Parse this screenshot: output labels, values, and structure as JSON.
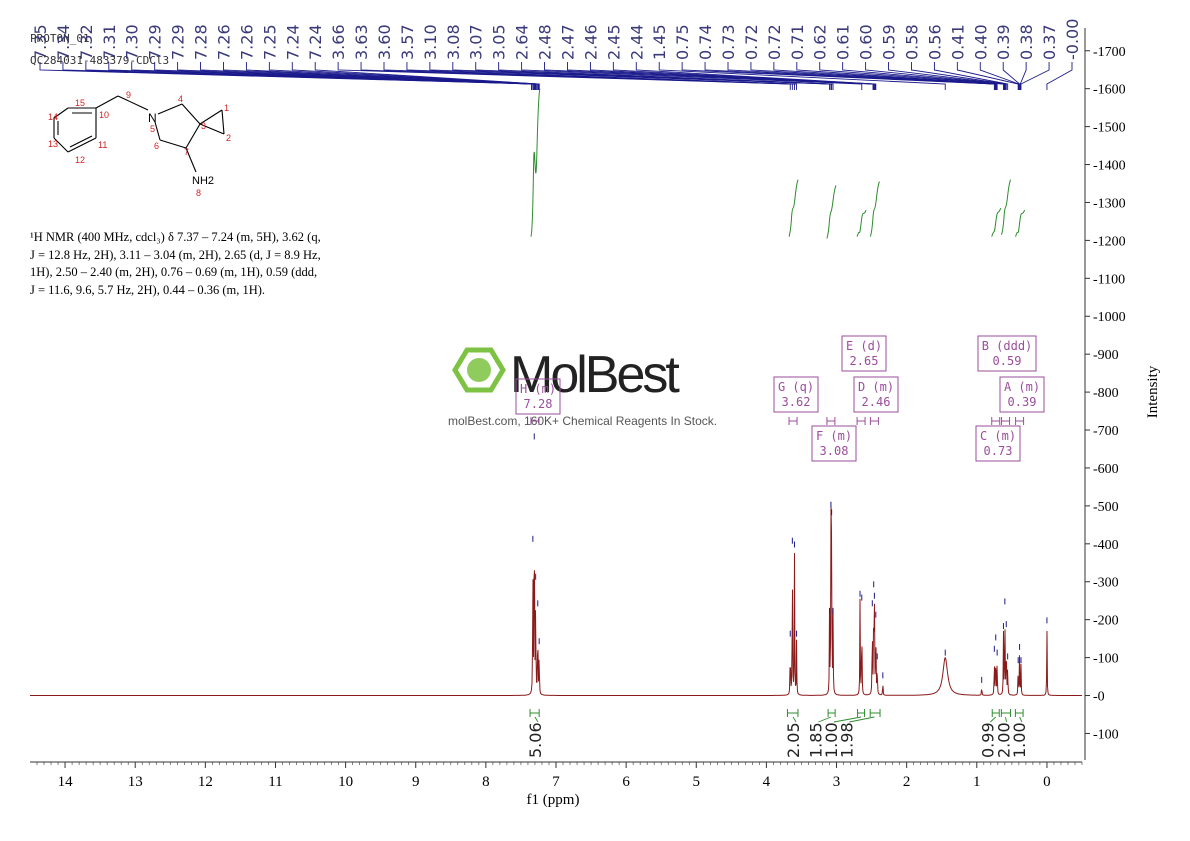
{
  "header": {
    "line1": "PROTON_01",
    "line2": "QC284031-483379-CDCl3"
  },
  "watermark": {
    "brand": "MolBest",
    "tagline": "molBest.com, 160K+ Chemical Reagents In Stock."
  },
  "structure": {
    "atom_labels": [
      "15",
      "14",
      "13",
      "12",
      "11",
      "10",
      "9",
      "N",
      "5",
      "4",
      "3",
      "1",
      "2",
      "6",
      "7",
      "NH2",
      "8"
    ]
  },
  "description": {
    "lines": [
      "¹H NMR (400 MHz, cdcl₃) δ 7.37 – 7.24 (m, 5H), 3.62 (q,",
      "J = 12.8 Hz, 2H), 3.11 – 3.04 (m, 2H), 2.65 (d, J = 8.9 Hz,",
      "1H), 2.50 – 2.40 (m, 2H), 0.76 – 0.69 (m, 1H), 0.59 (ddd,",
      "J = 11.6, 9.6, 5.7 Hz, 2H), 0.44 – 0.36 (m, 1H)."
    ]
  },
  "chart_data": {
    "type": "line",
    "xlabel": "f1 (ppm)",
    "ylabel": "Intensity",
    "xlim": [
      14.5,
      -0.5
    ],
    "ylim": [
      -170,
      1760
    ],
    "x_ticks": [
      14,
      13,
      12,
      11,
      10,
      9,
      8,
      7,
      6,
      5,
      4,
      3,
      2,
      1,
      0
    ],
    "y_ticks": [
      -100,
      0,
      100,
      200,
      300,
      400,
      500,
      600,
      700,
      800,
      900,
      1000,
      1100,
      1200,
      1300,
      1400,
      1500,
      1600,
      1700
    ],
    "peak_labels": [
      "7.35",
      "7.34",
      "7.32",
      "7.31",
      "7.30",
      "7.29",
      "7.29",
      "7.28",
      "7.26",
      "7.26",
      "7.25",
      "7.24",
      "7.24",
      "3.66",
      "3.63",
      "3.60",
      "3.57",
      "3.10",
      "3.08",
      "3.07",
      "3.05",
      "2.64",
      "2.48",
      "2.47",
      "2.46",
      "2.45",
      "2.44",
      "1.45",
      "0.75",
      "0.74",
      "0.73",
      "0.72",
      "0.72",
      "0.71",
      "0.62",
      "0.61",
      "0.60",
      "0.59",
      "0.58",
      "0.56",
      "0.41",
      "0.40",
      "0.39",
      "0.38",
      "0.37",
      "-0.00"
    ],
    "peaks": [
      {
        "x": 7.33,
        "h": 400
      },
      {
        "x": 7.31,
        "h": 670
      },
      {
        "x": 7.29,
        "h": 300
      },
      {
        "x": 7.26,
        "h": 230
      },
      {
        "x": 7.24,
        "h": 130
      },
      {
        "x": 3.66,
        "h": 150
      },
      {
        "x": 3.63,
        "h": 395
      },
      {
        "x": 3.6,
        "h": 385
      },
      {
        "x": 3.57,
        "h": 150
      },
      {
        "x": 3.1,
        "h": 210
      },
      {
        "x": 3.08,
        "h": 490
      },
      {
        "x": 3.07,
        "h": 470
      },
      {
        "x": 3.05,
        "h": 210
      },
      {
        "x": 2.665,
        "h": 255
      },
      {
        "x": 2.64,
        "h": 245
      },
      {
        "x": 2.49,
        "h": 230
      },
      {
        "x": 2.47,
        "h": 280
      },
      {
        "x": 2.46,
        "h": 250
      },
      {
        "x": 2.44,
        "h": 200
      },
      {
        "x": 2.42,
        "h": 90
      },
      {
        "x": 2.34,
        "h": 40
      },
      {
        "x": 1.45,
        "h": 100
      },
      {
        "x": 0.93,
        "h": 28
      },
      {
        "x": 0.75,
        "h": 110
      },
      {
        "x": 0.73,
        "h": 140
      },
      {
        "x": 0.71,
        "h": 100
      },
      {
        "x": 0.62,
        "h": 170
      },
      {
        "x": 0.6,
        "h": 235
      },
      {
        "x": 0.58,
        "h": 175
      },
      {
        "x": 0.56,
        "h": 90
      },
      {
        "x": 0.41,
        "h": 80
      },
      {
        "x": 0.39,
        "h": 115
      },
      {
        "x": 0.37,
        "h": 80
      },
      {
        "x": 0.0,
        "h": 185
      }
    ],
    "multiplets": [
      {
        "id": "H",
        "type": "(m)",
        "shift": "7.28",
        "x": 7.3
      },
      {
        "id": "G",
        "type": "(q)",
        "shift": "3.62",
        "x": 3.62
      },
      {
        "id": "F",
        "type": "(m)",
        "shift": "3.08",
        "x": 3.08
      },
      {
        "id": "E",
        "type": "(d)",
        "shift": "2.65",
        "x": 2.65
      },
      {
        "id": "D",
        "type": "(m)",
        "shift": "2.46",
        "x": 2.46
      },
      {
        "id": "C",
        "type": "(m)",
        "shift": "0.73",
        "x": 0.73
      },
      {
        "id": "B",
        "type": "(ddd)",
        "shift": "0.59",
        "x": 0.59
      },
      {
        "id": "A",
        "type": "(m)",
        "shift": "0.39",
        "x": 0.39
      }
    ],
    "integrals": [
      {
        "label": "5.06",
        "from": 7.37,
        "to": 7.24
      },
      {
        "label": "2.05",
        "from": 3.7,
        "to": 3.55
      },
      {
        "label": "1.85",
        "from": 3.12,
        "to": 3.02
      },
      {
        "label": "1.00",
        "from": 2.7,
        "to": 2.6
      },
      {
        "label": "1.98",
        "from": 2.52,
        "to": 2.38
      },
      {
        "label": "0.99",
        "from": 0.78,
        "to": 0.68
      },
      {
        "label": "2.00",
        "from": 0.65,
        "to": 0.52
      },
      {
        "label": "1.00",
        "from": 0.45,
        "to": 0.34
      }
    ]
  },
  "colors": {
    "spectrum": "#8b1a1a",
    "peak_lines": "#1a1a8c",
    "integral": "#2e8b2e",
    "annotation": "#9b4d9b",
    "axis": "#333333",
    "structure_red": "#d42020"
  }
}
